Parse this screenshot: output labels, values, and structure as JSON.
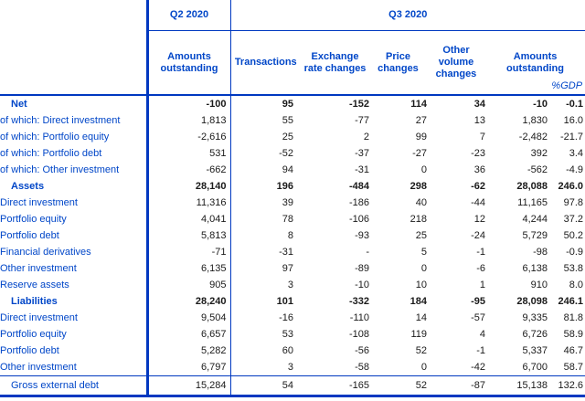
{
  "colors": {
    "line_blue": "#0038c0",
    "text_blue": "#0046c8",
    "number_black": "#1a1a1a"
  },
  "header": {
    "q2_label": "Q2 2020",
    "q3_label": "Q3 2020",
    "q2_subcolumn": "Amounts outstanding",
    "q3_subcolumns": {
      "transactions": "Transactions",
      "exchange_rate": "Exchange rate changes",
      "price": "Price changes",
      "other_volume": "Other volume changes",
      "amounts_outstanding": "Amounts outstanding"
    },
    "gdp_note": "%GDP"
  },
  "table": {
    "columns": [
      "Q2 2020 Amounts outstanding",
      "Transactions",
      "Exchange rate changes",
      "Price changes",
      "Other volume changes",
      "Q3 2020 Amounts outstanding",
      "%GDP"
    ],
    "rows": [
      {
        "label": "Net",
        "style": "bold",
        "values": [
          "-100",
          "95",
          "-152",
          "114",
          "34",
          "-10",
          "-0.1"
        ]
      },
      {
        "label": "of which: Direct investment",
        "style": "indent",
        "values": [
          "1,813",
          "55",
          "-77",
          "27",
          "13",
          "1,830",
          "16.0"
        ]
      },
      {
        "label": "of which: Portfolio equity",
        "style": "indent",
        "values": [
          "-2,616",
          "25",
          "2",
          "99",
          "7",
          "-2,482",
          "-21.7"
        ]
      },
      {
        "label": "of which: Portfolio debt",
        "style": "indent",
        "values": [
          "531",
          "-52",
          "-37",
          "-27",
          "-23",
          "392",
          "3.4"
        ]
      },
      {
        "label": "of which: Other investment",
        "style": "indent",
        "values": [
          "-662",
          "94",
          "-31",
          "0",
          "36",
          "-562",
          "-4.9"
        ]
      },
      {
        "label": "Assets",
        "style": "bold",
        "values": [
          "28,140",
          "196",
          "-484",
          "298",
          "-62",
          "28,088",
          "246.0"
        ]
      },
      {
        "label": "Direct investment",
        "style": "indent",
        "values": [
          "11,316",
          "39",
          "-186",
          "40",
          "-44",
          "11,165",
          "97.8"
        ]
      },
      {
        "label": "Portfolio equity",
        "style": "indent",
        "values": [
          "4,041",
          "78",
          "-106",
          "218",
          "12",
          "4,244",
          "37.2"
        ]
      },
      {
        "label": "Portfolio debt",
        "style": "indent",
        "values": [
          "5,813",
          "8",
          "-93",
          "25",
          "-24",
          "5,729",
          "50.2"
        ]
      },
      {
        "label": "Financial derivatives",
        "style": "indent",
        "values": [
          "-71",
          "-31",
          "-",
          "5",
          "-1",
          "-98",
          "-0.9"
        ]
      },
      {
        "label": "Other investment",
        "style": "indent",
        "values": [
          "6,135",
          "97",
          "-89",
          "0",
          "-6",
          "6,138",
          "53.8"
        ]
      },
      {
        "label": "Reserve assets",
        "style": "indent",
        "values": [
          "905",
          "3",
          "-10",
          "10",
          "1",
          "910",
          "8.0"
        ]
      },
      {
        "label": "Liabilities",
        "style": "bold",
        "values": [
          "28,240",
          "101",
          "-332",
          "184",
          "-95",
          "28,098",
          "246.1"
        ]
      },
      {
        "label": "Direct investment",
        "style": "indent",
        "values": [
          "9,504",
          "-16",
          "-110",
          "14",
          "-57",
          "9,335",
          "81.8"
        ]
      },
      {
        "label": "Portfolio equity",
        "style": "indent",
        "values": [
          "6,657",
          "53",
          "-108",
          "119",
          "4",
          "6,726",
          "58.9"
        ]
      },
      {
        "label": "Portfolio debt",
        "style": "indent",
        "values": [
          "5,282",
          "60",
          "-56",
          "52",
          "-1",
          "5,337",
          "46.7"
        ]
      },
      {
        "label": "Other investment",
        "style": "indent",
        "values": [
          "6,797",
          "3",
          "-58",
          "0",
          "-42",
          "6,700",
          "58.7"
        ]
      },
      {
        "label": "Gross external debt",
        "style": "total",
        "values": [
          "15,284",
          "54",
          "-165",
          "52",
          "-87",
          "15,138",
          "132.6"
        ]
      }
    ]
  }
}
